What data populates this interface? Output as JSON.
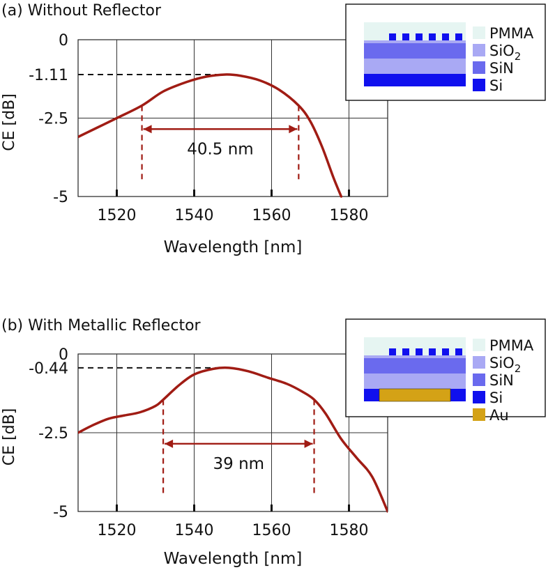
{
  "chart_data": [
    {
      "type": "line",
      "title": "(a) Without Reflector",
      "xlabel": "Wavelength [nm]",
      "ylabel": "CE [dB]",
      "xlim": [
        1510,
        1590
      ],
      "ylim": [
        -5,
        0
      ],
      "x_ticks": [
        "1520",
        "1540",
        "1560",
        "1580"
      ],
      "y_ticks": [
        "0",
        "-1.11",
        "-2.5",
        "-5"
      ],
      "grid": true,
      "series": [
        {
          "color": "#a01c14",
          "x": [
            1510,
            1515,
            1520,
            1526.5,
            1532,
            1538,
            1543,
            1548,
            1552,
            1557,
            1562,
            1567,
            1570,
            1573,
            1576,
            1578
          ],
          "y": [
            -3.1,
            -2.8,
            -2.5,
            -2.1,
            -1.65,
            -1.35,
            -1.18,
            -1.11,
            -1.15,
            -1.3,
            -1.6,
            -2.1,
            -2.6,
            -3.4,
            -4.4,
            -5.0
          ]
        }
      ],
      "peak_value": -1.11,
      "bandwidth": {
        "label": "40.5 nm",
        "x_start": 1526.5,
        "x_end": 1567,
        "level": -2.1
      },
      "legend": {
        "items": [
          {
            "label": "PMMA",
            "color": "#e6f5f2"
          },
          {
            "label": "SiO",
            "sub": "2",
            "color": "#a9a9f4"
          },
          {
            "label": "SiN",
            "color": "#6a6aee"
          },
          {
            "label": "Si",
            "color": "#1010ee"
          }
        ]
      }
    },
    {
      "type": "line",
      "title": "(b) With Metallic Reflector",
      "xlabel": "Wavelength [nm]",
      "ylabel": "CE [dB]",
      "xlim": [
        1510,
        1590
      ],
      "ylim": [
        -5,
        0
      ],
      "x_ticks": [
        "1520",
        "1540",
        "1560",
        "1580"
      ],
      "y_ticks": [
        "0",
        "-0.44",
        "-2.5",
        "-5"
      ],
      "grid": true,
      "series": [
        {
          "color": "#a01c14",
          "x": [
            1510,
            1514,
            1518,
            1522,
            1526,
            1530,
            1532,
            1536,
            1540,
            1545,
            1549,
            1554,
            1559,
            1564,
            1568,
            1571,
            1574,
            1578,
            1582,
            1586,
            1590
          ],
          "y": [
            -2.5,
            -2.25,
            -2.05,
            -1.95,
            -1.85,
            -1.65,
            -1.45,
            -1.0,
            -0.65,
            -0.47,
            -0.44,
            -0.55,
            -0.75,
            -0.95,
            -1.2,
            -1.45,
            -1.9,
            -2.7,
            -3.3,
            -3.9,
            -5.0
          ]
        }
      ],
      "peak_value": -0.44,
      "bandwidth": {
        "label": "39 nm",
        "x_start": 1532,
        "x_end": 1571,
        "level": -1.45
      },
      "legend": {
        "items": [
          {
            "label": "PMMA",
            "color": "#e6f5f2"
          },
          {
            "label": "SiO",
            "sub": "2",
            "color": "#a9a9f4"
          },
          {
            "label": "SiN",
            "color": "#6a6aee"
          },
          {
            "label": "Si",
            "color": "#1010ee"
          },
          {
            "label": "Au",
            "color": "#d4a216"
          }
        ]
      }
    }
  ]
}
